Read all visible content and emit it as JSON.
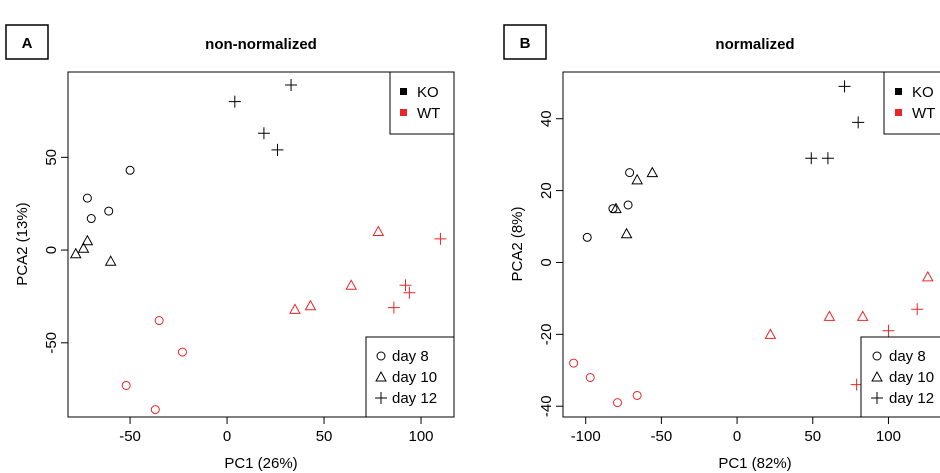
{
  "panels": [
    {
      "letter": "A",
      "title": "non-normalized"
    },
    {
      "letter": "B",
      "title": "normalized"
    }
  ],
  "colors": {
    "KO": "#000000",
    "WT": "#e8262a",
    "axis": "#000000"
  },
  "legend_genotype": [
    "KO",
    "WT"
  ],
  "legend_day": [
    {
      "label": "day 8",
      "marker": "circle"
    },
    {
      "label": "day 10",
      "marker": "triangle"
    },
    {
      "label": "day 12",
      "marker": "plus"
    }
  ],
  "chart_data": [
    {
      "type": "scatter",
      "title": "non-normalized",
      "xlabel": "PC1 (26%)",
      "ylabel": "PCA2 (13%)",
      "xlim": [
        -82,
        117
      ],
      "ylim": [
        -90,
        96
      ],
      "xticks": [
        -50,
        0,
        50,
        100
      ],
      "yticks": [
        -50,
        0,
        50
      ],
      "grid": false,
      "legend": [
        "top-right",
        "bottom-right"
      ],
      "series": [
        {
          "name": "KO",
          "day": "day 8",
          "x": [
            -72,
            -70,
            -61,
            -50
          ],
          "y": [
            28,
            17,
            21,
            43
          ]
        },
        {
          "name": "KO",
          "day": "day 10",
          "x": [
            -78,
            -74,
            -72,
            -60
          ],
          "y": [
            -2,
            1,
            5,
            -6
          ]
        },
        {
          "name": "KO",
          "day": "day 12",
          "x": [
            4,
            19,
            26,
            33
          ],
          "y": [
            80,
            63,
            54,
            89
          ]
        },
        {
          "name": "WT",
          "day": "day 8",
          "x": [
            -52,
            -37,
            -35,
            -23
          ],
          "y": [
            -73,
            -86,
            -38,
            -55
          ]
        },
        {
          "name": "WT",
          "day": "day 10",
          "x": [
            35,
            43,
            64,
            78
          ],
          "y": [
            -32,
            -30,
            -19,
            10
          ]
        },
        {
          "name": "WT",
          "day": "day 12",
          "x": [
            86,
            92,
            94,
            110
          ],
          "y": [
            -31,
            -19,
            -23,
            6
          ]
        }
      ]
    },
    {
      "type": "scatter",
      "title": "normalized",
      "xlabel": "PC1 (82%)",
      "ylabel": "PCA2 (8%)",
      "xlim": [
        -115,
        140
      ],
      "ylim": [
        -43,
        53
      ],
      "xticks": [
        -100,
        -50,
        0,
        50,
        100
      ],
      "yticks": [
        -40,
        -20,
        0,
        20,
        40
      ],
      "grid": false,
      "legend": [
        "top-right",
        "bottom-right"
      ],
      "series": [
        {
          "name": "KO",
          "day": "day 8",
          "x": [
            -99,
            -82,
            -71,
            -72
          ],
          "y": [
            7,
            15,
            25,
            16
          ]
        },
        {
          "name": "KO",
          "day": "day 10",
          "x": [
            -80,
            -73,
            -66,
            -56
          ],
          "y": [
            15,
            8,
            23,
            25
          ]
        },
        {
          "name": "KO",
          "day": "day 12",
          "x": [
            49,
            60,
            71,
            80
          ],
          "y": [
            29,
            29,
            49,
            39
          ]
        },
        {
          "name": "WT",
          "day": "day 8",
          "x": [
            -108,
            -97,
            -79,
            -66
          ],
          "y": [
            -28,
            -32,
            -39,
            -37
          ]
        },
        {
          "name": "WT",
          "day": "day 10",
          "x": [
            22,
            61,
            83,
            126
          ],
          "y": [
            -20,
            -15,
            -15,
            -4
          ]
        },
        {
          "name": "WT",
          "day": "day 12",
          "x": [
            79,
            100,
            108,
            119
          ],
          "y": [
            -34,
            -19,
            -24,
            -13
          ]
        }
      ]
    }
  ]
}
